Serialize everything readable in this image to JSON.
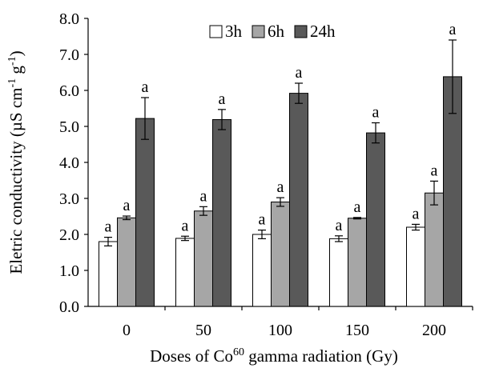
{
  "chart_data": {
    "type": "bar",
    "categories": [
      "0",
      "50",
      "100",
      "150",
      "200"
    ],
    "series": [
      {
        "name": "3h",
        "values": [
          1.8,
          1.89,
          2.0,
          1.88,
          2.2
        ],
        "errors": [
          0.12,
          0.06,
          0.12,
          0.08,
          0.08
        ],
        "labels": [
          "a",
          "a",
          "a",
          "a",
          "a"
        ],
        "color": "#ffffff"
      },
      {
        "name": "6h",
        "values": [
          2.46,
          2.65,
          2.9,
          2.45,
          3.15
        ],
        "errors": [
          0.05,
          0.12,
          0.12,
          0.02,
          0.33
        ],
        "labels": [
          "a",
          "a",
          "a",
          "a",
          "a"
        ],
        "color": "#a6a6a6"
      },
      {
        "name": "24h",
        "values": [
          5.22,
          5.19,
          5.92,
          4.82,
          6.38
        ],
        "errors": [
          0.58,
          0.28,
          0.28,
          0.28,
          1.02
        ],
        "labels": [
          "a",
          "a",
          "a",
          "a",
          "a"
        ],
        "color": "#595959"
      }
    ],
    "ylim": [
      0,
      8
    ],
    "yticks": [
      "0.0",
      "1.0",
      "2.0",
      "3.0",
      "4.0",
      "5.0",
      "6.0",
      "7.0",
      "8.0"
    ],
    "ylabel": {
      "main": "Eletric conductivity (µS cm",
      "sup1": "-1",
      "mid": " g",
      "sup2": "-1",
      "end": ")"
    },
    "xlabel": {
      "main": "Doses of Co",
      "sup": "60",
      "end": " gamma radiation (Gy)"
    },
    "legend_position": "top-center",
    "grid": false
  }
}
